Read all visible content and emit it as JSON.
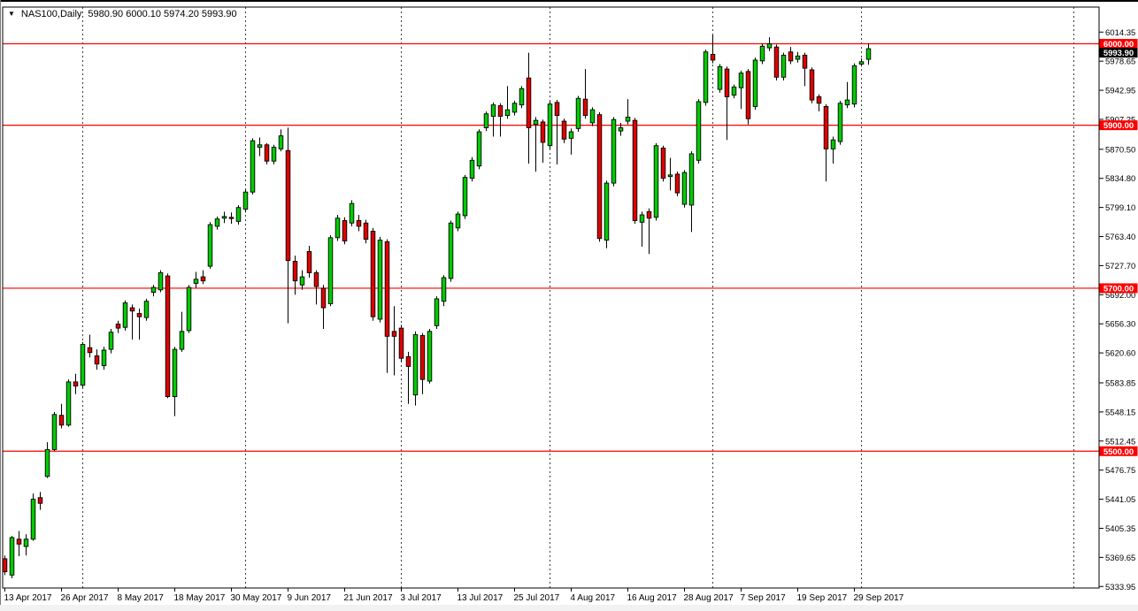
{
  "title": {
    "dropdown_icon": "▼",
    "symbol": "NAS100,Daily",
    "ohlc": "5980.90 6000.10 5974.20 5993.90"
  },
  "axis": {
    "price_ticks": [
      6014.35,
      5978.65,
      5942.95,
      5907.25,
      5870.5,
      5834.8,
      5799.1,
      5763.4,
      5727.7,
      5692.0,
      5656.3,
      5620.6,
      5583.85,
      5548.15,
      5512.45,
      5476.75,
      5441.05,
      5405.35,
      5369.65,
      5333.95
    ],
    "date_labels": [
      {
        "bar": 0,
        "text": "13 Apr 2017"
      },
      {
        "bar": 8,
        "text": "26 Apr 2017"
      },
      {
        "bar": 16,
        "text": "8 May 2017"
      },
      {
        "bar": 24,
        "text": "18 May 2017"
      },
      {
        "bar": 32,
        "text": "30 May 2017"
      },
      {
        "bar": 40,
        "text": "9 Jun 2017"
      },
      {
        "bar": 48,
        "text": "21 Jun 2017"
      },
      {
        "bar": 56,
        "text": "3 Jul 2017"
      },
      {
        "bar": 64,
        "text": "13 Jul 2017"
      },
      {
        "bar": 72,
        "text": "25 Jul 2017"
      },
      {
        "bar": 80,
        "text": "4 Aug 2017"
      },
      {
        "bar": 88,
        "text": "16 Aug 2017"
      },
      {
        "bar": 96,
        "text": "28 Aug 2017"
      },
      {
        "bar": 104,
        "text": "7 Sep 2017"
      },
      {
        "bar": 112,
        "text": "19 Sep 2017"
      },
      {
        "bar": 120,
        "text": "29 Sep 2017"
      }
    ]
  },
  "chart_data": {
    "type": "candlestick",
    "symbol": "NAS100",
    "timeframe": "Daily",
    "first_bar_date": "13 Apr 2017",
    "ylim": [
      5333.95,
      6014.35
    ],
    "grid": "vertical-dashed-month-starts",
    "legend_position": "none",
    "horizontal_lines": [
      {
        "price": 6000.0,
        "label": "6000.00"
      },
      {
        "price": 5900.0,
        "label": "5900.00"
      },
      {
        "price": 5700.0,
        "label": "5700.00"
      },
      {
        "price": 5500.0,
        "label": "5500.00"
      }
    ],
    "current_price": {
      "value": 5993.9,
      "label": "5993.90"
    },
    "current_bar": {
      "open": 5980.9,
      "high": 6000.1,
      "low": 5974.2,
      "close": 5993.9
    },
    "month_start_bars": [
      11,
      34,
      56,
      77,
      100,
      121
    ],
    "future_gridlines_x": [
      1213
    ],
    "columns": [
      "open",
      "high",
      "low",
      "close"
    ],
    "candles": [
      [
        5368,
        5372,
        5348,
        5352
      ],
      [
        5348,
        5396,
        5344,
        5394
      ],
      [
        5392,
        5402,
        5371,
        5386
      ],
      [
        5383,
        5398,
        5372,
        5392
      ],
      [
        5392,
        5448,
        5390,
        5441
      ],
      [
        5443,
        5450,
        5428,
        5436
      ],
      [
        5469,
        5511,
        5467,
        5502
      ],
      [
        5502,
        5548,
        5500,
        5545
      ],
      [
        5544,
        5558,
        5528,
        5532
      ],
      [
        5532,
        5588,
        5530,
        5585
      ],
      [
        5585,
        5595,
        5570,
        5580
      ],
      [
        5581,
        5634,
        5578,
        5631
      ],
      [
        5627,
        5643,
        5615,
        5621
      ],
      [
        5617,
        5625,
        5600,
        5607
      ],
      [
        5605,
        5628,
        5600,
        5624
      ],
      [
        5625,
        5650,
        5620,
        5646
      ],
      [
        5656,
        5660,
        5645,
        5651
      ],
      [
        5652,
        5685,
        5648,
        5682
      ],
      [
        5676,
        5680,
        5637,
        5672
      ],
      [
        5669,
        5675,
        5637,
        5665
      ],
      [
        5664,
        5687,
        5660,
        5684
      ],
      [
        5695,
        5704,
        5690,
        5701
      ],
      [
        5698,
        5722,
        5695,
        5719
      ],
      [
        5715,
        5718,
        5565,
        5567
      ],
      [
        5567,
        5628,
        5543,
        5625
      ],
      [
        5625,
        5671,
        5622,
        5647
      ],
      [
        5648,
        5704,
        5645,
        5701
      ],
      [
        5706,
        5720,
        5700,
        5711
      ],
      [
        5714,
        5722,
        5705,
        5709
      ],
      [
        5727,
        5781,
        5724,
        5778
      ],
      [
        5776,
        5788,
        5772,
        5785
      ],
      [
        5786,
        5794,
        5780,
        5788
      ],
      [
        5787,
        5793,
        5779,
        5786
      ],
      [
        5782,
        5802,
        5778,
        5799
      ],
      [
        5797,
        5821,
        5793,
        5818
      ],
      [
        5818,
        5884,
        5815,
        5881
      ],
      [
        5873,
        5885,
        5862,
        5876
      ],
      [
        5876,
        5878,
        5852,
        5856
      ],
      [
        5856,
        5876,
        5852,
        5873
      ],
      [
        5871,
        5895,
        5868,
        5887
      ],
      [
        5869,
        5897,
        5657,
        5734
      ],
      [
        5733,
        5740,
        5692,
        5709
      ],
      [
        5704,
        5722,
        5698,
        5714
      ],
      [
        5745,
        5752,
        5713,
        5719
      ],
      [
        5719,
        5722,
        5680,
        5702
      ],
      [
        5700,
        5704,
        5650,
        5676
      ],
      [
        5681,
        5765,
        5678,
        5762
      ],
      [
        5762,
        5790,
        5758,
        5786
      ],
      [
        5783,
        5787,
        5754,
        5758
      ],
      [
        5780,
        5808,
        5776,
        5804
      ],
      [
        5783,
        5790,
        5770,
        5776
      ],
      [
        5780,
        5784,
        5755,
        5760
      ],
      [
        5770,
        5774,
        5660,
        5665
      ],
      [
        5662,
        5763,
        5658,
        5759
      ],
      [
        5757,
        5760,
        5596,
        5641
      ],
      [
        5647,
        5678,
        5593,
        5641
      ],
      [
        5651,
        5655,
        5610,
        5614
      ],
      [
        5616,
        5622,
        5558,
        5604
      ],
      [
        5569,
        5647,
        5556,
        5643
      ],
      [
        5642,
        5645,
        5570,
        5588
      ],
      [
        5586,
        5650,
        5583,
        5647
      ],
      [
        5654,
        5690,
        5650,
        5687
      ],
      [
        5684,
        5716,
        5678,
        5713
      ],
      [
        5712,
        5783,
        5708,
        5780
      ],
      [
        5774,
        5794,
        5770,
        5791
      ],
      [
        5789,
        5839,
        5785,
        5836
      ],
      [
        5835,
        5861,
        5831,
        5857
      ],
      [
        5850,
        5895,
        5846,
        5892
      ],
      [
        5897,
        5917,
        5893,
        5914
      ],
      [
        5911,
        5928,
        5886,
        5925
      ],
      [
        5924,
        5927,
        5886,
        5911
      ],
      [
        5912,
        5948,
        5908,
        5919
      ],
      [
        5916,
        5930,
        5912,
        5927
      ],
      [
        5925,
        5948,
        5921,
        5945
      ],
      [
        5958,
        5989,
        5853,
        5897
      ],
      [
        5901,
        5910,
        5843,
        5906
      ],
      [
        5904,
        5907,
        5854,
        5879
      ],
      [
        5875,
        5929,
        5871,
        5926
      ],
      [
        5928,
        5931,
        5852,
        5912
      ],
      [
        5905,
        5908,
        5878,
        5883
      ],
      [
        5884,
        5896,
        5864,
        5892
      ],
      [
        5896,
        5936,
        5892,
        5933
      ],
      [
        5932,
        5969,
        5908,
        5912
      ],
      [
        5903,
        5922,
        5899,
        5919
      ],
      [
        5913,
        5916,
        5757,
        5761
      ],
      [
        5759,
        5832,
        5749,
        5829
      ],
      [
        5829,
        5910,
        5825,
        5907
      ],
      [
        5893,
        5903,
        5887,
        5897
      ],
      [
        5905,
        5932,
        5901,
        5910
      ],
      [
        5906,
        5909,
        5779,
        5783
      ],
      [
        5781,
        5794,
        5751,
        5790
      ],
      [
        5794,
        5798,
        5742,
        5786
      ],
      [
        5787,
        5878,
        5783,
        5875
      ],
      [
        5872,
        5875,
        5831,
        5835
      ],
      [
        5837,
        5860,
        5820,
        5839
      ],
      [
        5840,
        5843,
        5813,
        5817
      ],
      [
        5803,
        5845,
        5799,
        5842
      ],
      [
        5802,
        5868,
        5769,
        5865
      ],
      [
        5857,
        5932,
        5853,
        5929
      ],
      [
        5928,
        5993,
        5924,
        5990
      ],
      [
        5987,
        6011,
        5976,
        5980
      ],
      [
        5944,
        5975,
        5940,
        5972
      ],
      [
        5969,
        5972,
        5882,
        5935
      ],
      [
        5937,
        5950,
        5933,
        5947
      ],
      [
        5946,
        5967,
        5920,
        5964
      ],
      [
        5966,
        5969,
        5901,
        5908
      ],
      [
        5923,
        5983,
        5919,
        5980
      ],
      [
        5979,
        6000,
        5975,
        5997
      ],
      [
        5995,
        6008,
        5991,
        6000
      ],
      [
        5996,
        5999,
        5955,
        5959
      ],
      [
        5959,
        5989,
        5955,
        5986
      ],
      [
        5990,
        5996,
        5975,
        5979
      ],
      [
        5981,
        5990,
        5977,
        5985
      ],
      [
        5986,
        5989,
        5948,
        5970
      ],
      [
        5968,
        5971,
        5927,
        5931
      ],
      [
        5935,
        5938,
        5917,
        5927
      ],
      [
        5923,
        5926,
        5831,
        5871
      ],
      [
        5871,
        5886,
        5853,
        5882
      ],
      [
        5880,
        5930,
        5876,
        5927
      ],
      [
        5925,
        5953,
        5921,
        5931
      ],
      [
        5926,
        5976,
        5922,
        5973
      ],
      [
        5975,
        5982,
        5972,
        5978
      ],
      [
        5980.9,
        6000.1,
        5974.2,
        5993.9
      ]
    ]
  },
  "colors": {
    "bull": "#00cc00",
    "bear": "#e00000",
    "outline": "#000000",
    "level_line": "#ff0000",
    "label_box_red": "#fc0000",
    "label_box_black": "#000000",
    "label_text": "#ffffff",
    "grid": "#3c3c3c",
    "axis_text": "#000000"
  }
}
